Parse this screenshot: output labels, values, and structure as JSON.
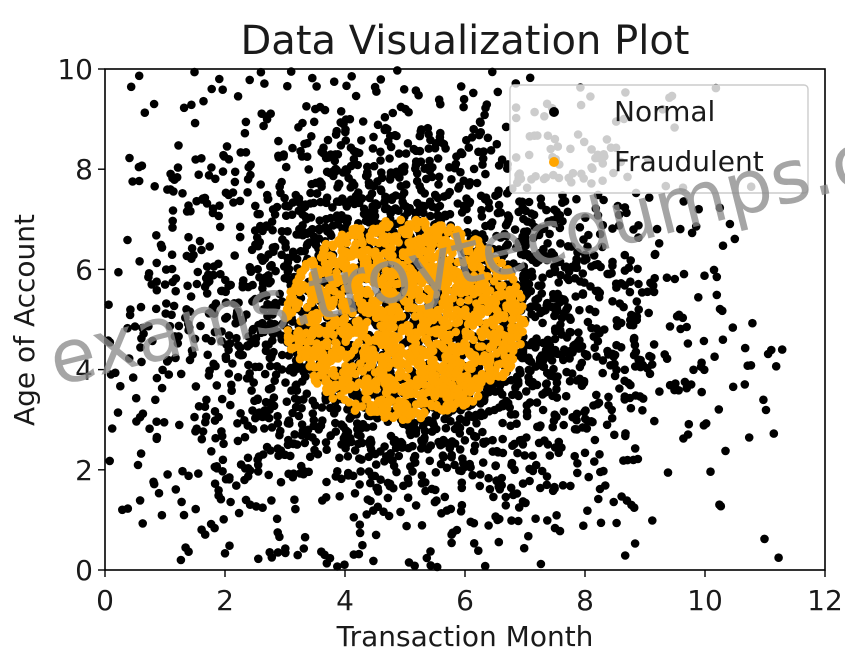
{
  "chart_data": {
    "type": "scatter",
    "title": "Data Visualization Plot",
    "xlabel": "Transaction Month",
    "ylabel": "Age of Account",
    "xlim": [
      0,
      12
    ],
    "ylim": [
      0,
      10
    ],
    "xticks": [
      "0",
      "2",
      "4",
      "6",
      "8",
      "10",
      "12"
    ],
    "yticks": [
      "0",
      "2",
      "4",
      "6",
      "8",
      "10"
    ],
    "grid": false,
    "legend_position": "top-right",
    "series": [
      {
        "name": "Normal",
        "color": "#000000",
        "description": "dense cloud of points centered near (5, 5) spreading to x 0–11.2, y 0–10",
        "center": [
          5,
          5
        ],
        "spread": [
          2.2,
          2.2
        ],
        "approx_count": 3000
      },
      {
        "name": "Fraudulent",
        "color": "#FFA500",
        "description": "filled disc of points centered at (5, 5) with radius ~2",
        "center": [
          5,
          5
        ],
        "radius_x": 2,
        "radius_y": 2,
        "approx_count": 1500
      }
    ]
  },
  "watermark": "exams.troytecdumps.com"
}
